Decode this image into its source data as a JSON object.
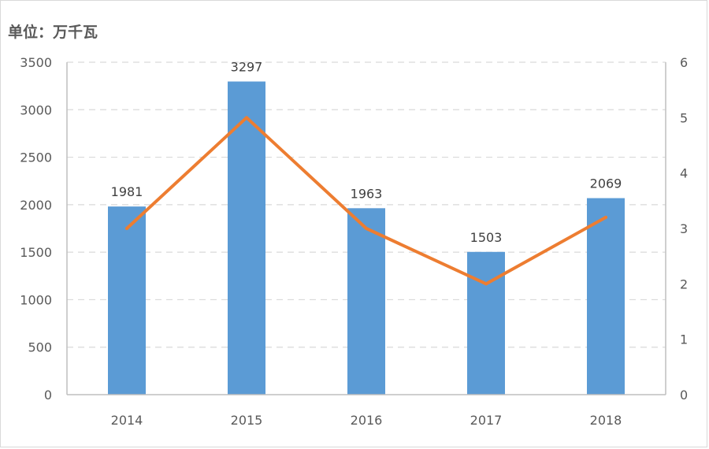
{
  "unit_label": "单位：万千瓦",
  "colors": {
    "bar": "#5b9bd5",
    "line": "#ed7d31",
    "grid": "#d9d9d9",
    "axis_text": "#595959",
    "data_label": "#404040"
  },
  "chart_data": {
    "type": "bar",
    "categories": [
      "2014",
      "2015",
      "2016",
      "2017",
      "2018"
    ],
    "series": [
      {
        "kind": "bar",
        "axis": "left",
        "values": [
          1981,
          3297,
          1963,
          1503,
          2069
        ],
        "data_labels": [
          "1981",
          "3297",
          "1963",
          "1503",
          "2069"
        ]
      },
      {
        "kind": "line",
        "axis": "right",
        "values": [
          3,
          5,
          3,
          2,
          3.2
        ]
      }
    ],
    "y_left": {
      "min": 0,
      "max": 3500,
      "ticks": [
        "0",
        "500",
        "1000",
        "1500",
        "2000",
        "2500",
        "3000",
        "3500"
      ]
    },
    "y_right": {
      "min": 0,
      "max": 6,
      "ticks": [
        "0",
        "1",
        "2",
        "3",
        "4",
        "5",
        "6"
      ]
    },
    "grid": true,
    "legend": "none"
  }
}
